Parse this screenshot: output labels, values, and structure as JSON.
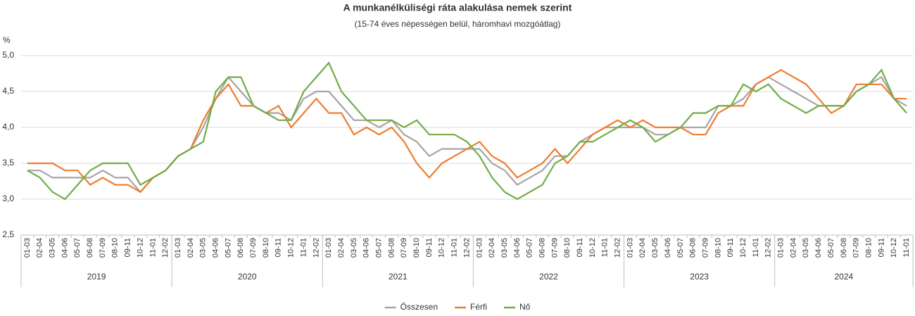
{
  "chart_data": {
    "type": "line",
    "title": "A munkanélküliségi ráta alakulása nemek szerint",
    "subtitle": "(15-74 éves népességen belül, háromhavi mozgóátlag)",
    "y_label": "%",
    "groups": [
      {
        "name": "2019",
        "categories": [
          "01-03",
          "02-04",
          "03-05",
          "04-06",
          "05-07",
          "06-08",
          "07-09",
          "08-10",
          "09-11",
          "10-12",
          "11-01",
          "12-02"
        ]
      },
      {
        "name": "2020",
        "categories": [
          "01-03",
          "02-04",
          "03-05",
          "04-06",
          "05-07",
          "06-08",
          "07-09",
          "08-10",
          "09-11",
          "10-12",
          "11-01",
          "12-02"
        ]
      },
      {
        "name": "2021",
        "categories": [
          "01-03",
          "02-04",
          "03-05",
          "04-06",
          "05-07",
          "06-08",
          "07-09",
          "08-10",
          "09-11",
          "10-12",
          "11-01",
          "12-02"
        ]
      },
      {
        "name": "2022",
        "categories": [
          "01-03",
          "02-04",
          "03-05",
          "04-06",
          "05-07",
          "06-08",
          "07-09",
          "08-10",
          "09-11",
          "10-12",
          "11-01",
          "12-02"
        ]
      },
      {
        "name": "2023",
        "categories": [
          "01-03",
          "02-04",
          "03-05",
          "04-06",
          "05-07",
          "06-08",
          "07-09",
          "08-10",
          "09-11",
          "10-12",
          "11-01",
          "12-02"
        ]
      },
      {
        "name": "2024",
        "categories": [
          "01-03",
          "02-04",
          "03-05",
          "04-06",
          "05-07",
          "06-08",
          "07-09",
          "08-10",
          "09-11",
          "10-12",
          "11-01"
        ]
      }
    ],
    "series": [
      {
        "name": "Összesen",
        "color": "#a5a5a5",
        "values": [
          3.4,
          3.4,
          3.3,
          3.3,
          3.3,
          3.3,
          3.4,
          3.3,
          3.3,
          3.1,
          3.3,
          3.4,
          3.6,
          3.7,
          4.0,
          4.4,
          4.7,
          4.5,
          4.3,
          4.2,
          4.2,
          4.1,
          4.4,
          4.5,
          4.5,
          4.3,
          4.1,
          4.1,
          4.0,
          4.1,
          3.9,
          3.8,
          3.6,
          3.7,
          3.7,
          3.7,
          3.7,
          3.5,
          3.4,
          3.2,
          3.3,
          3.4,
          3.6,
          3.6,
          3.8,
          3.9,
          4.0,
          4.0,
          4.0,
          4.0,
          3.9,
          3.9,
          4.0,
          4.0,
          4.0,
          4.3,
          4.3,
          4.4,
          4.6,
          4.7,
          4.6,
          4.5,
          4.4,
          4.3,
          4.3,
          4.3,
          4.5,
          4.6,
          4.7,
          4.4,
          4.3
        ]
      },
      {
        "name": "Férfi",
        "color": "#ed7d31",
        "values": [
          3.5,
          3.5,
          3.5,
          3.4,
          3.4,
          3.2,
          3.3,
          3.2,
          3.2,
          3.1,
          3.3,
          3.4,
          3.6,
          3.7,
          4.1,
          4.4,
          4.6,
          4.3,
          4.3,
          4.2,
          4.3,
          4.0,
          4.2,
          4.4,
          4.2,
          4.2,
          3.9,
          4.0,
          3.9,
          4.0,
          3.8,
          3.5,
          3.3,
          3.5,
          3.6,
          3.7,
          3.8,
          3.6,
          3.5,
          3.3,
          3.4,
          3.5,
          3.7,
          3.5,
          3.7,
          3.9,
          4.0,
          4.1,
          4.0,
          4.1,
          4.0,
          4.0,
          4.0,
          3.9,
          3.9,
          4.2,
          4.3,
          4.3,
          4.6,
          4.7,
          4.8,
          4.7,
          4.6,
          4.4,
          4.2,
          4.3,
          4.6,
          4.6,
          4.6,
          4.4,
          4.4
        ]
      },
      {
        "name": "Nő",
        "color": "#70ad47",
        "values": [
          3.4,
          3.3,
          3.1,
          3.0,
          3.2,
          3.4,
          3.5,
          3.5,
          3.5,
          3.2,
          3.3,
          3.4,
          3.6,
          3.7,
          3.8,
          4.5,
          4.7,
          4.7,
          4.3,
          4.2,
          4.1,
          4.1,
          4.5,
          4.7,
          4.9,
          4.5,
          4.3,
          4.1,
          4.1,
          4.1,
          4.0,
          4.1,
          3.9,
          3.9,
          3.9,
          3.8,
          3.6,
          3.3,
          3.1,
          3.0,
          3.1,
          3.2,
          3.5,
          3.6,
          3.8,
          3.8,
          3.9,
          4.0,
          4.1,
          4.0,
          3.8,
          3.9,
          4.0,
          4.2,
          4.2,
          4.3,
          4.3,
          4.6,
          4.5,
          4.6,
          4.4,
          4.3,
          4.2,
          4.3,
          4.3,
          4.3,
          4.5,
          4.6,
          4.8,
          4.4,
          4.2
        ]
      }
    ],
    "ylim": [
      2.5,
      5.0
    ],
    "yticks": [
      {
        "value": 2.5,
        "label": "2,5"
      },
      {
        "value": 3.0,
        "label": "3,0"
      },
      {
        "value": 3.5,
        "label": "3,5"
      },
      {
        "value": 4.0,
        "label": "4,0"
      },
      {
        "value": 4.5,
        "label": "4,5"
      },
      {
        "value": 5.0,
        "label": "5,0"
      }
    ],
    "grid": true,
    "legend": "bottom"
  }
}
